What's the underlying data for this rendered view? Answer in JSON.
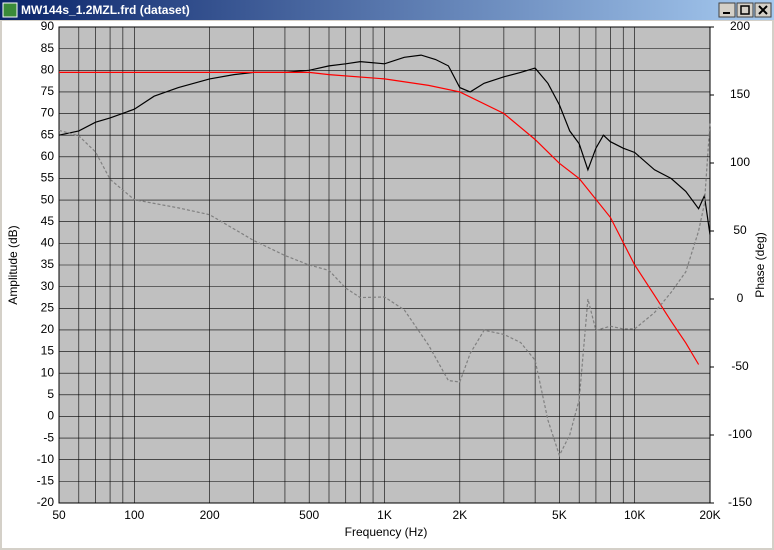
{
  "window": {
    "title": "MW144s_1.2MZL.frd (dataset)"
  },
  "chart_data": {
    "type": "line",
    "xlabel": "Frequency (Hz)",
    "ylabel": "Amplitude (dB)",
    "y2label": "Phase (deg)",
    "xscale": "log",
    "grid": true,
    "xlim": [
      50,
      20000
    ],
    "xticks": [
      50,
      100,
      200,
      500,
      {
        "value": 1000,
        "label": "1K"
      },
      {
        "value": 2000,
        "label": "2K"
      },
      {
        "value": 5000,
        "label": "5K"
      },
      {
        "value": 10000,
        "label": "10K"
      },
      {
        "value": 20000,
        "label": "20K"
      }
    ],
    "xminor": [
      60,
      70,
      80,
      90,
      300,
      400,
      600,
      700,
      800,
      900,
      3000,
      4000,
      6000,
      7000,
      8000,
      9000
    ],
    "ylim": [
      -20,
      90
    ],
    "yticks": [
      90,
      85,
      80,
      75,
      70,
      65,
      60,
      55,
      50,
      45,
      40,
      35,
      30,
      25,
      20,
      15,
      10,
      5,
      0,
      -5,
      -10,
      -15,
      -20
    ],
    "y2lim": [
      -150,
      200
    ],
    "y2ticks": [
      200,
      150,
      100,
      50,
      0,
      -50,
      -100,
      -150
    ],
    "series": [
      {
        "color": "#000000",
        "dash": false,
        "x": [
          50,
          60,
          70,
          80,
          100,
          120,
          150,
          200,
          250,
          300,
          400,
          500,
          600,
          700,
          800,
          1000,
          1200,
          1400,
          1600,
          1800,
          2000,
          2200,
          2500,
          3000,
          3500,
          4000,
          4500,
          5000,
          5500,
          6000,
          6500,
          7000,
          7500,
          8000,
          9000,
          10000,
          12000,
          14000,
          16000,
          18000,
          19000,
          20000
        ],
        "values": [
          65,
          66,
          68,
          69,
          71,
          74,
          76,
          78,
          79,
          79.5,
          79.5,
          80,
          81,
          81.5,
          82,
          81.5,
          83,
          83.5,
          82.5,
          81,
          76,
          75,
          77,
          78.5,
          79.5,
          80.5,
          77,
          72,
          66,
          63,
          57,
          62,
          65,
          63.5,
          62,
          61,
          57,
          55,
          52,
          48,
          51,
          42
        ]
      },
      {
        "color": "#ff0000",
        "dash": false,
        "x": [
          50,
          100,
          200,
          300,
          500,
          600,
          1000,
          1500,
          2000,
          3000,
          4000,
          5000,
          6000,
          8000,
          10000,
          12000,
          14000,
          16000,
          18000
        ],
        "values": [
          79.5,
          79.5,
          79.5,
          79.5,
          79.5,
          79,
          78,
          76.5,
          75,
          70,
          64,
          58.5,
          55,
          46,
          35,
          28,
          22,
          17,
          12
        ]
      },
      {
        "color": "#808080",
        "dash": true,
        "axis": "y2",
        "x": [
          50,
          60,
          70,
          80,
          100,
          150,
          200,
          300,
          400,
          500,
          600,
          700,
          800,
          1000,
          1200,
          1500,
          1800,
          2000,
          2200,
          2500,
          3000,
          3500,
          4000,
          4500,
          5000,
          5500,
          6000,
          6500,
          7000,
          8000,
          9000,
          10000,
          12000,
          14000,
          16000,
          18000,
          19000,
          20000
        ],
        "values": [
          124,
          120,
          108,
          88,
          73,
          67,
          62,
          43,
          32,
          25,
          21,
          8,
          1,
          1.5,
          -8,
          -34,
          -60,
          -61,
          -40,
          -23,
          -26,
          -32,
          -45,
          -89,
          -115,
          -100,
          -74,
          0,
          -23,
          -20,
          -22,
          -22,
          -10,
          5,
          20,
          50,
          70,
          130
        ]
      }
    ]
  }
}
